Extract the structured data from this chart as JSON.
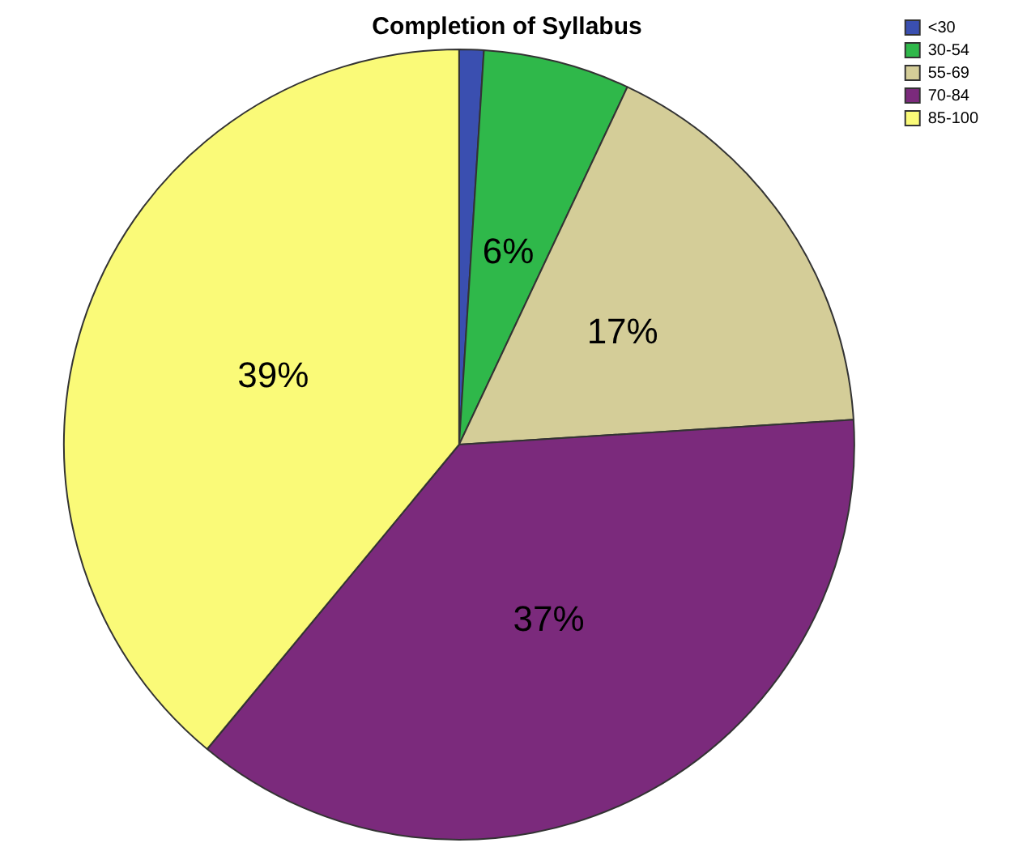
{
  "chart_data": {
    "type": "pie",
    "title": "Completion of Syllabus",
    "categories": [
      "<30",
      "30-54",
      "55-69",
      "70-84",
      "85-100"
    ],
    "values": [
      1,
      6,
      17,
      37,
      39
    ],
    "colors": [
      "#3a4fb0",
      "#2fb84a",
      "#d4cd98",
      "#7b2a7c",
      "#fafa78"
    ],
    "value_labels": [
      null,
      "6%",
      "17%",
      "37%",
      "39%"
    ],
    "legend": "top right"
  }
}
